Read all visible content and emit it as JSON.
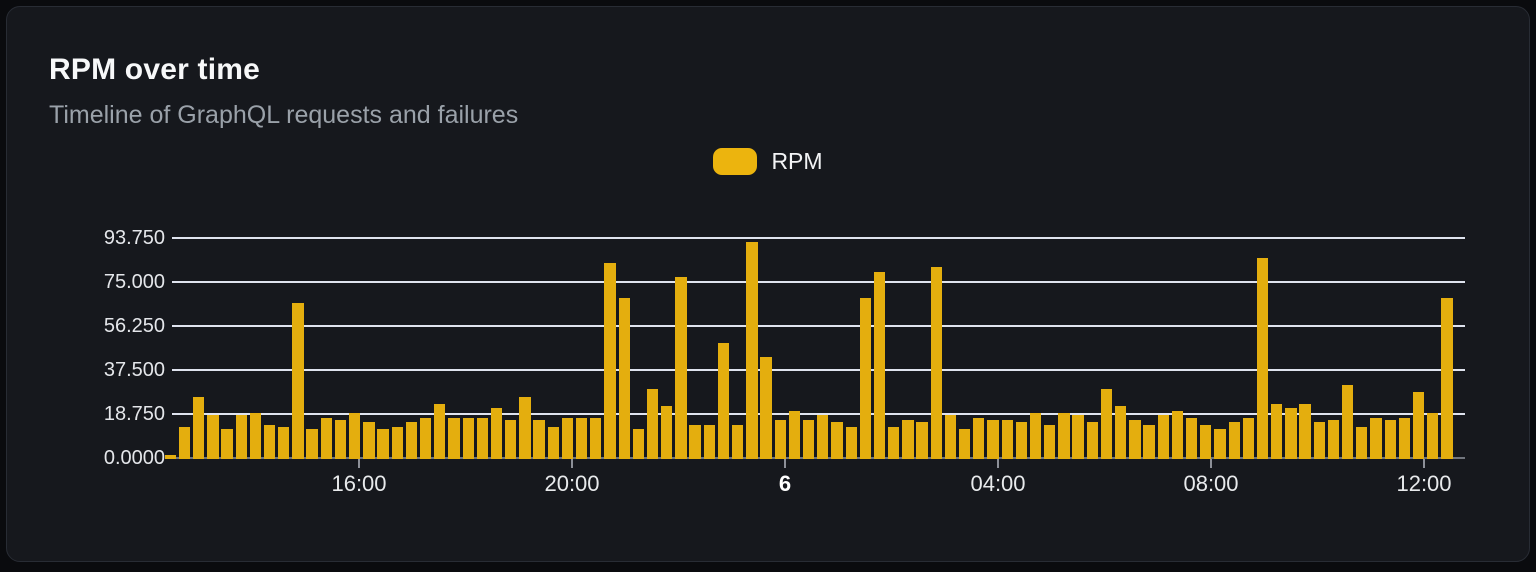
{
  "card": {
    "title": "RPM over time",
    "subtitle": "Timeline of GraphQL requests and failures"
  },
  "legend": {
    "items": [
      {
        "label": "RPM",
        "color": "#ecb40e"
      }
    ]
  },
  "chart_data": {
    "type": "bar",
    "title": "RPM over time",
    "subtitle": "Timeline of GraphQL requests and failures",
    "series_name": "RPM",
    "ylim": [
      0,
      93.75
    ],
    "grid": true,
    "legend_position": "top-center",
    "y_ticks": [
      {
        "value": 0,
        "label": "0.0000"
      },
      {
        "value": 18.75,
        "label": "18.750"
      },
      {
        "value": 37.5,
        "label": "37.500"
      },
      {
        "value": 56.25,
        "label": "56.250"
      },
      {
        "value": 75,
        "label": "75.000"
      },
      {
        "value": 93.75,
        "label": "93.750"
      }
    ],
    "x_ticks": [
      "16:00",
      "20:00",
      "6",
      "04:00",
      "08:00",
      "12:00"
    ],
    "x_tick_bold_index": 2,
    "values": [
      1.2,
      13,
      26,
      18,
      12,
      18,
      19,
      14,
      13,
      66,
      12,
      17,
      16,
      19,
      15,
      12,
      13,
      15,
      17,
      23,
      17,
      17,
      17,
      21,
      16,
      26,
      16,
      13,
      17,
      17,
      17,
      83,
      68,
      12,
      29,
      22,
      77,
      14,
      14,
      49,
      14,
      92,
      43,
      16,
      20,
      16,
      18,
      15,
      13,
      68,
      79,
      13,
      16,
      15,
      81,
      18,
      12,
      17,
      16,
      16,
      15,
      19,
      14,
      19,
      18,
      15,
      29,
      22,
      16,
      14,
      18,
      20,
      17,
      14,
      12,
      15,
      17,
      85,
      23,
      21,
      23,
      15,
      16,
      31,
      13,
      17,
      16,
      17,
      28,
      19,
      68
    ]
  },
  "colors": {
    "background": "#0a0b0e",
    "card": "#16181d",
    "card_border": "#282c34",
    "bar": "#e4ae0e",
    "legend_swatch": "#ecb40e",
    "gridline": "#dfe3ee",
    "axis_line": "#71757d",
    "title_text": "#f7f8f9",
    "subtitle_text": "#9aa1a9",
    "axis_text": "#e4e6ea"
  }
}
